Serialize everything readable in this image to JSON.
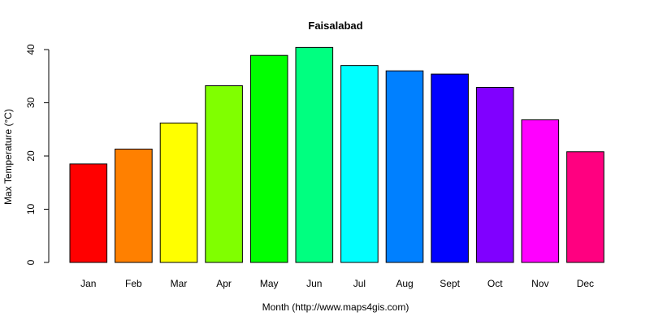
{
  "chart_data": {
    "type": "bar",
    "title": "Faisalabad",
    "xlabel": "Month (http://www.maps4gis.com)",
    "ylabel": "Max Temperature (°C)",
    "ylim": [
      0,
      40
    ],
    "yticks": [
      0,
      10,
      20,
      30,
      40
    ],
    "categories": [
      "Jan",
      "Feb",
      "Mar",
      "Apr",
      "May",
      "Jun",
      "Jul",
      "Aug",
      "Sept",
      "Oct",
      "Nov",
      "Dec"
    ],
    "values": [
      18.5,
      21.3,
      26.2,
      33.2,
      38.9,
      40.4,
      37.0,
      36.0,
      35.4,
      32.9,
      26.8,
      20.8
    ],
    "colors": [
      "#FF0000",
      "#FF8000",
      "#FFFF00",
      "#80FF00",
      "#00FF00",
      "#00FF80",
      "#00FFFF",
      "#0080FF",
      "#0000FF",
      "#8000FF",
      "#FF00FF",
      "#FF0080"
    ],
    "grid": false,
    "legend": "none"
  }
}
